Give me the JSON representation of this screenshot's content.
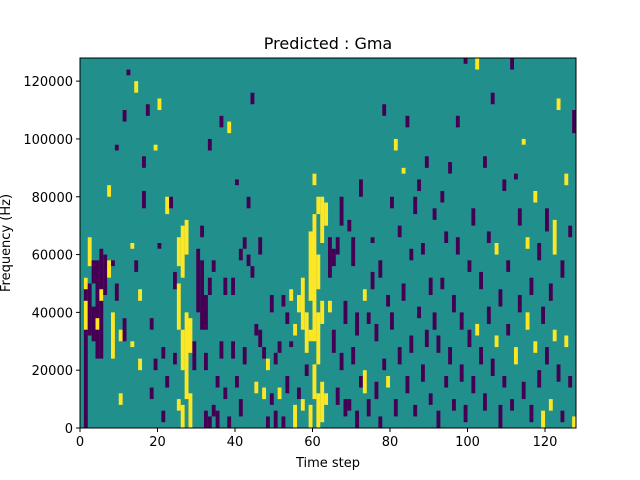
{
  "chart_data": {
    "type": "heatmap",
    "title": "Predicted : Gma",
    "xlabel": "Time step",
    "ylabel": "Frequency (Hz)",
    "xlim": [
      0,
      128
    ],
    "ylim": [
      0,
      128000
    ],
    "x_ticks": [
      0,
      20,
      40,
      60,
      80,
      100,
      120
    ],
    "y_ticks": [
      0,
      20000,
      40000,
      60000,
      80000,
      100000,
      120000
    ],
    "colormap": {
      "background": "#21908d",
      "low": "#440154",
      "high": "#fde725"
    },
    "grid": false,
    "cell_value_levels": {
      "low": -1,
      "background": 0,
      "high": 1
    },
    "cell_size": {
      "time_step": 1,
      "frequency_hz": 2000
    },
    "cells_note_format": "[time_step, frequency_start_hz, frequency_end_hz, level]",
    "cells": [
      [
        1,
        0,
        52000,
        -1
      ],
      [
        1,
        34000,
        44000,
        1
      ],
      [
        1,
        48000,
        52000,
        1
      ],
      [
        2,
        32000,
        50000,
        -1
      ],
      [
        2,
        56000,
        66000,
        1
      ],
      [
        3,
        30000,
        42000,
        -1
      ],
      [
        3,
        50000,
        58000,
        -1
      ],
      [
        4,
        24000,
        58000,
        -1
      ],
      [
        4,
        34000,
        38000,
        1
      ],
      [
        5,
        24000,
        62000,
        -1
      ],
      [
        5,
        44000,
        48000,
        1
      ],
      [
        6,
        46000,
        60000,
        -1
      ],
      [
        7,
        52000,
        58000,
        1
      ],
      [
        7,
        80000,
        84000,
        1
      ],
      [
        8,
        24000,
        40000,
        1
      ],
      [
        8,
        56000,
        58000,
        -1
      ],
      [
        9,
        44000,
        50000,
        -1
      ],
      [
        9,
        96000,
        98000,
        -1
      ],
      [
        10,
        8000,
        12000,
        1
      ],
      [
        10,
        30000,
        34000,
        1
      ],
      [
        11,
        30000,
        38000,
        -1
      ],
      [
        11,
        106000,
        110000,
        -1
      ],
      [
        12,
        122000,
        124000,
        -1
      ],
      [
        13,
        28000,
        30000,
        1
      ],
      [
        13,
        62000,
        64000,
        1
      ],
      [
        14,
        54000,
        58000,
        -1
      ],
      [
        14,
        116000,
        120000,
        1
      ],
      [
        15,
        20000,
        24000,
        1
      ],
      [
        15,
        44000,
        48000,
        1
      ],
      [
        16,
        76000,
        82000,
        -1
      ],
      [
        16,
        90000,
        94000,
        -1
      ],
      [
        17,
        108000,
        112000,
        -1
      ],
      [
        18,
        10000,
        14000,
        -1
      ],
      [
        18,
        34000,
        38000,
        -1
      ],
      [
        19,
        20000,
        24000,
        -1
      ],
      [
        19,
        96000,
        98000,
        1
      ],
      [
        20,
        62000,
        64000,
        -1
      ],
      [
        20,
        110000,
        114000,
        1
      ],
      [
        21,
        2000,
        6000,
        -1
      ],
      [
        21,
        24000,
        28000,
        -1
      ],
      [
        22,
        14000,
        18000,
        -1
      ],
      [
        22,
        74000,
        80000,
        1
      ],
      [
        23,
        76000,
        80000,
        -1
      ],
      [
        24,
        22000,
        26000,
        -1
      ],
      [
        24,
        48000,
        54000,
        -1
      ],
      [
        25,
        6000,
        10000,
        1
      ],
      [
        25,
        34000,
        50000,
        1
      ],
      [
        25,
        56000,
        66000,
        1
      ],
      [
        26,
        0,
        8000,
        1
      ],
      [
        26,
        20000,
        34000,
        1
      ],
      [
        26,
        52000,
        70000,
        1
      ],
      [
        27,
        10000,
        40000,
        1
      ],
      [
        27,
        60000,
        72000,
        1
      ],
      [
        28,
        0,
        12000,
        1
      ],
      [
        28,
        26000,
        38000,
        1
      ],
      [
        29,
        20000,
        30000,
        -1
      ],
      [
        30,
        40000,
        62000,
        -1
      ],
      [
        31,
        34000,
        58000,
        -1
      ],
      [
        31,
        66000,
        70000,
        -1
      ],
      [
        32,
        0,
        6000,
        -1
      ],
      [
        32,
        20000,
        26000,
        -1
      ],
      [
        32,
        34000,
        46000,
        -1
      ],
      [
        33,
        0,
        4000,
        -1
      ],
      [
        33,
        46000,
        52000,
        -1
      ],
      [
        33,
        96000,
        100000,
        -1
      ],
      [
        34,
        4000,
        8000,
        -1
      ],
      [
        34,
        54000,
        58000,
        -1
      ],
      [
        35,
        0,
        6000,
        -1
      ],
      [
        35,
        14000,
        18000,
        -1
      ],
      [
        36,
        24000,
        30000,
        -1
      ],
      [
        36,
        104000,
        108000,
        -1
      ],
      [
        37,
        10000,
        14000,
        -1
      ],
      [
        37,
        46000,
        52000,
        -1
      ],
      [
        38,
        0,
        4000,
        -1
      ],
      [
        38,
        102000,
        106000,
        1
      ],
      [
        39,
        24000,
        30000,
        -1
      ],
      [
        39,
        46000,
        52000,
        -1
      ],
      [
        40,
        14000,
        18000,
        -1
      ],
      [
        40,
        84000,
        86000,
        -1
      ],
      [
        41,
        4000,
        10000,
        -1
      ],
      [
        41,
        58000,
        62000,
        -1
      ],
      [
        42,
        22000,
        28000,
        -1
      ],
      [
        42,
        62000,
        66000,
        -1
      ],
      [
        43,
        56000,
        60000,
        -1
      ],
      [
        43,
        76000,
        80000,
        -1
      ],
      [
        44,
        52000,
        56000,
        -1
      ],
      [
        44,
        112000,
        116000,
        -1
      ],
      [
        45,
        12000,
        16000,
        1
      ],
      [
        45,
        32000,
        36000,
        -1
      ],
      [
        46,
        28000,
        34000,
        -1
      ],
      [
        46,
        60000,
        66000,
        -1
      ],
      [
        47,
        10000,
        14000,
        1
      ],
      [
        47,
        24000,
        28000,
        -1
      ],
      [
        48,
        0,
        4000,
        -1
      ],
      [
        48,
        20000,
        24000,
        1
      ],
      [
        49,
        8000,
        12000,
        -1
      ],
      [
        49,
        40000,
        46000,
        -1
      ],
      [
        50,
        0,
        6000,
        -1
      ],
      [
        50,
        22000,
        26000,
        -1
      ],
      [
        51,
        10000,
        14000,
        1
      ],
      [
        51,
        26000,
        30000,
        -1
      ],
      [
        52,
        0,
        4000,
        -1
      ],
      [
        52,
        42000,
        46000,
        -1
      ],
      [
        53,
        12000,
        18000,
        -1
      ],
      [
        53,
        36000,
        40000,
        -1
      ],
      [
        54,
        28000,
        30000,
        -1
      ],
      [
        54,
        44000,
        48000,
        1
      ],
      [
        55,
        0,
        8000,
        1
      ],
      [
        55,
        32000,
        36000,
        1
      ],
      [
        56,
        10000,
        14000,
        -1
      ],
      [
        56,
        40000,
        46000,
        1
      ],
      [
        57,
        34000,
        52000,
        1
      ],
      [
        57,
        6000,
        10000,
        1
      ],
      [
        58,
        26000,
        40000,
        1
      ],
      [
        58,
        18000,
        22000,
        -1
      ],
      [
        59,
        0,
        8000,
        1
      ],
      [
        59,
        30000,
        34000,
        1
      ],
      [
        59,
        44000,
        68000,
        1
      ],
      [
        60,
        10000,
        22000,
        1
      ],
      [
        60,
        30000,
        74000,
        1
      ],
      [
        60,
        84000,
        88000,
        1
      ],
      [
        61,
        0,
        12000,
        1
      ],
      [
        61,
        22000,
        40000,
        1
      ],
      [
        61,
        48000,
        60000,
        1
      ],
      [
        61,
        74000,
        80000,
        1
      ],
      [
        62,
        2000,
        16000,
        1
      ],
      [
        62,
        36000,
        44000,
        1
      ],
      [
        62,
        64000,
        80000,
        1
      ],
      [
        63,
        8000,
        12000,
        1
      ],
      [
        63,
        70000,
        78000,
        1
      ],
      [
        64,
        40000,
        44000,
        1
      ],
      [
        64,
        52000,
        66000,
        -1
      ],
      [
        65,
        26000,
        34000,
        -1
      ],
      [
        65,
        56000,
        62000,
        -1
      ],
      [
        66,
        8000,
        14000,
        -1
      ],
      [
        66,
        60000,
        66000,
        -1
      ],
      [
        67,
        20000,
        26000,
        -1
      ],
      [
        67,
        70000,
        80000,
        -1
      ],
      [
        68,
        4000,
        10000,
        -1
      ],
      [
        68,
        36000,
        44000,
        -1
      ],
      [
        69,
        6000,
        10000,
        -1
      ],
      [
        69,
        68000,
        72000,
        -1
      ],
      [
        70,
        22000,
        28000,
        -1
      ],
      [
        70,
        56000,
        66000,
        -1
      ],
      [
        71,
        0,
        6000,
        -1
      ],
      [
        71,
        32000,
        40000,
        -1
      ],
      [
        72,
        14000,
        18000,
        -1
      ],
      [
        72,
        80000,
        86000,
        -1
      ],
      [
        73,
        12000,
        20000,
        1
      ],
      [
        73,
        44000,
        48000,
        1
      ],
      [
        74,
        4000,
        10000,
        -1
      ],
      [
        74,
        36000,
        40000,
        -1
      ],
      [
        75,
        48000,
        54000,
        -1
      ],
      [
        75,
        64000,
        66000,
        -1
      ],
      [
        76,
        10000,
        16000,
        -1
      ],
      [
        76,
        30000,
        36000,
        -1
      ],
      [
        77,
        0,
        4000,
        -1
      ],
      [
        77,
        52000,
        58000,
        -1
      ],
      [
        78,
        20000,
        24000,
        -1
      ],
      [
        78,
        108000,
        112000,
        -1
      ],
      [
        79,
        14000,
        18000,
        1
      ],
      [
        79,
        42000,
        46000,
        -1
      ],
      [
        80,
        34000,
        40000,
        -1
      ],
      [
        80,
        76000,
        80000,
        -1
      ],
      [
        81,
        4000,
        10000,
        -1
      ],
      [
        81,
        96000,
        100000,
        1
      ],
      [
        82,
        22000,
        28000,
        -1
      ],
      [
        82,
        66000,
        70000,
        -1
      ],
      [
        83,
        44000,
        50000,
        -1
      ],
      [
        83,
        88000,
        90000,
        1
      ],
      [
        84,
        12000,
        18000,
        -1
      ],
      [
        84,
        104000,
        108000,
        -1
      ],
      [
        85,
        26000,
        32000,
        -1
      ],
      [
        85,
        58000,
        62000,
        -1
      ],
      [
        86,
        4000,
        8000,
        -1
      ],
      [
        86,
        74000,
        80000,
        -1
      ],
      [
        87,
        38000,
        42000,
        -1
      ],
      [
        87,
        82000,
        86000,
        -1
      ],
      [
        88,
        16000,
        22000,
        -1
      ],
      [
        88,
        60000,
        64000,
        -1
      ],
      [
        89,
        28000,
        34000,
        -1
      ],
      [
        89,
        90000,
        94000,
        -1
      ],
      [
        90,
        8000,
        12000,
        -1
      ],
      [
        90,
        46000,
        52000,
        -1
      ],
      [
        91,
        34000,
        40000,
        -1
      ],
      [
        91,
        72000,
        76000,
        -1
      ],
      [
        92,
        0,
        6000,
        -1
      ],
      [
        92,
        26000,
        32000,
        -1
      ],
      [
        93,
        48000,
        52000,
        -1
      ],
      [
        93,
        78000,
        82000,
        -1
      ],
      [
        94,
        14000,
        18000,
        -1
      ],
      [
        94,
        64000,
        68000,
        -1
      ],
      [
        95,
        22000,
        28000,
        -1
      ],
      [
        95,
        88000,
        92000,
        -1
      ],
      [
        96,
        6000,
        10000,
        -1
      ],
      [
        96,
        40000,
        46000,
        -1
      ],
      [
        97,
        60000,
        66000,
        -1
      ],
      [
        97,
        104000,
        108000,
        -1
      ],
      [
        98,
        16000,
        22000,
        -1
      ],
      [
        98,
        34000,
        40000,
        -1
      ],
      [
        99,
        2000,
        8000,
        -1
      ],
      [
        99,
        126000,
        128000,
        -1
      ],
      [
        100,
        28000,
        34000,
        -1
      ],
      [
        100,
        54000,
        58000,
        -1
      ],
      [
        101,
        12000,
        18000,
        -1
      ],
      [
        101,
        70000,
        76000,
        -1
      ],
      [
        102,
        32000,
        36000,
        1
      ],
      [
        102,
        124000,
        128000,
        1
      ],
      [
        103,
        22000,
        28000,
        -1
      ],
      [
        103,
        48000,
        54000,
        -1
      ],
      [
        104,
        6000,
        12000,
        -1
      ],
      [
        104,
        90000,
        94000,
        -1
      ],
      [
        105,
        36000,
        42000,
        -1
      ],
      [
        105,
        64000,
        68000,
        -1
      ],
      [
        106,
        18000,
        24000,
        -1
      ],
      [
        106,
        112000,
        116000,
        -1
      ],
      [
        107,
        28000,
        32000,
        1
      ],
      [
        107,
        60000,
        64000,
        1
      ],
      [
        108,
        0,
        8000,
        -1
      ],
      [
        108,
        42000,
        48000,
        -1
      ],
      [
        109,
        14000,
        18000,
        -1
      ],
      [
        109,
        82000,
        86000,
        -1
      ],
      [
        110,
        32000,
        36000,
        -1
      ],
      [
        110,
        54000,
        58000,
        -1
      ],
      [
        111,
        6000,
        10000,
        -1
      ],
      [
        111,
        124000,
        128000,
        -1
      ],
      [
        112,
        22000,
        28000,
        1
      ],
      [
        112,
        86000,
        88000,
        -1
      ],
      [
        113,
        40000,
        46000,
        -1
      ],
      [
        113,
        70000,
        76000,
        -1
      ],
      [
        114,
        10000,
        16000,
        -1
      ],
      [
        114,
        98000,
        100000,
        1
      ],
      [
        115,
        34000,
        40000,
        1
      ],
      [
        115,
        62000,
        66000,
        1
      ],
      [
        116,
        2000,
        8000,
        -1
      ],
      [
        116,
        46000,
        52000,
        -1
      ],
      [
        117,
        26000,
        30000,
        1
      ],
      [
        117,
        78000,
        82000,
        1
      ],
      [
        118,
        14000,
        20000,
        -1
      ],
      [
        118,
        58000,
        64000,
        -1
      ],
      [
        119,
        0,
        6000,
        1
      ],
      [
        119,
        36000,
        42000,
        -1
      ],
      [
        120,
        22000,
        28000,
        -1
      ],
      [
        120,
        68000,
        76000,
        -1
      ],
      [
        121,
        6000,
        10000,
        1
      ],
      [
        121,
        44000,
        50000,
        -1
      ],
      [
        122,
        30000,
        34000,
        1
      ],
      [
        122,
        60000,
        72000,
        1
      ],
      [
        123,
        16000,
        22000,
        -1
      ],
      [
        123,
        110000,
        114000,
        1
      ],
      [
        124,
        2000,
        6000,
        -1
      ],
      [
        124,
        52000,
        58000,
        -1
      ],
      [
        125,
        28000,
        32000,
        1
      ],
      [
        125,
        84000,
        88000,
        1
      ],
      [
        126,
        14000,
        18000,
        -1
      ],
      [
        126,
        66000,
        70000,
        -1
      ],
      [
        127,
        0,
        4000,
        1
      ],
      [
        127,
        102000,
        110000,
        -1
      ]
    ]
  }
}
